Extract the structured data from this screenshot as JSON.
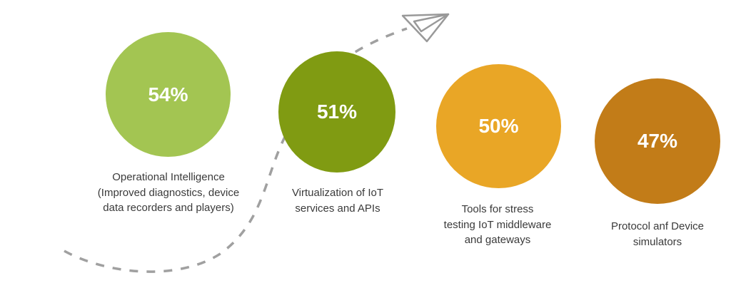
{
  "items": [
    {
      "value": "54%",
      "label_lines": [
        "Operational Intelligence",
        "(Improved diagnostics, device",
        "data recorders and players)"
      ],
      "color": "#a3c552"
    },
    {
      "value": "51%",
      "label_lines": [
        "Virtualization of IoT",
        "services and APIs"
      ],
      "color": "#809b12"
    },
    {
      "value": "50%",
      "label_lines": [
        "Tools for stress",
        "testing IoT middleware",
        "and gateways"
      ],
      "color": "#e9a626"
    },
    {
      "value": "47%",
      "label_lines": [
        "Protocol anf Device",
        "simulators"
      ],
      "color": "#c27c18"
    }
  ],
  "decor": {
    "path_color": "#a0a0a0",
    "icon": "paper-plane-icon"
  }
}
